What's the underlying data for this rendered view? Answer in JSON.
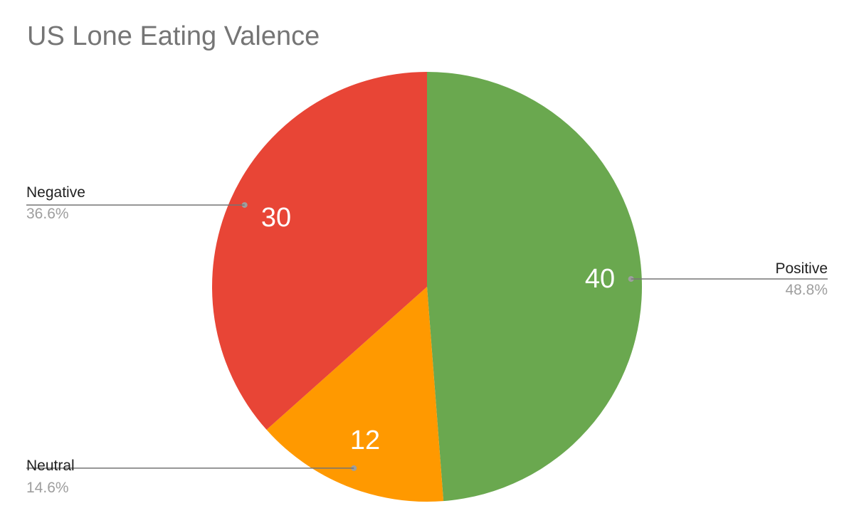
{
  "chart_data": {
    "type": "pie",
    "title": "US Lone Eating Valence",
    "slices": [
      {
        "label": "Positive",
        "value": 40,
        "percent": "48.8%",
        "color": "#6aa84f"
      },
      {
        "label": "Neutral",
        "value": 12,
        "percent": "14.6%",
        "color": "#ff9900"
      },
      {
        "label": "Negative",
        "value": 30,
        "percent": "36.6%",
        "color": "#e84536"
      }
    ],
    "start_angle": "top",
    "direction": "clockwise",
    "value_labels": "inside",
    "legend": "labeled-leaders"
  }
}
